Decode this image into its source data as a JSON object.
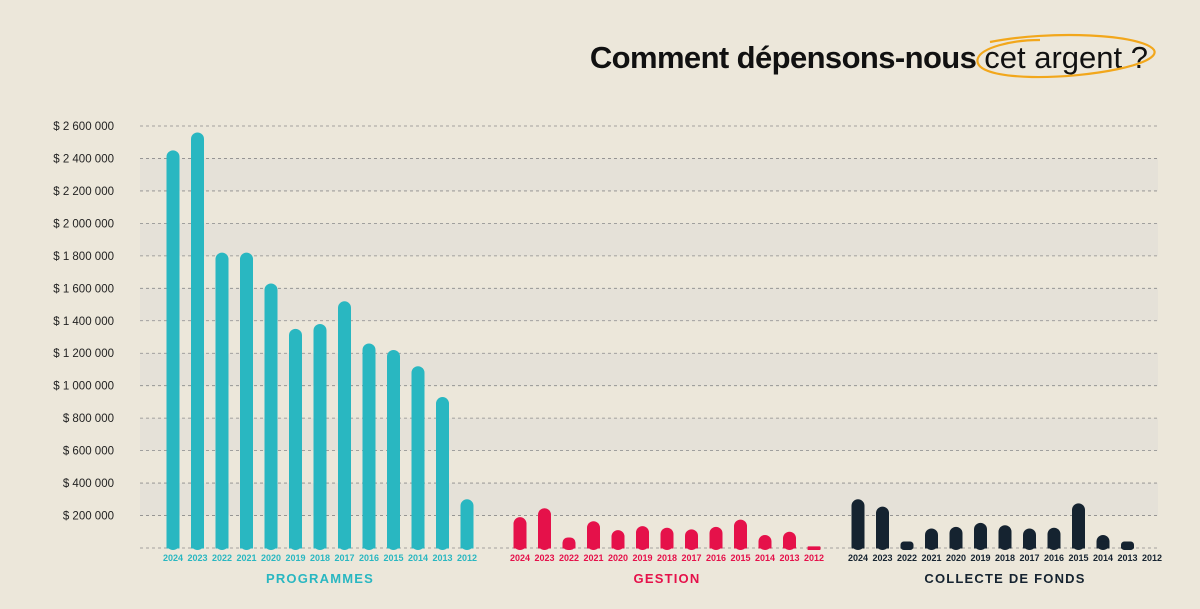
{
  "title": {
    "main": "Comment dépensons-nous",
    "highlight": "cet argent ?"
  },
  "colors": {
    "background": "#ece7da",
    "band": "#e5e1d8",
    "programmes": "#29b7c1",
    "gestion": "#e5114a",
    "collecte": "#152330",
    "highlight_ring": "#f2a71b"
  },
  "chart_data": {
    "type": "bar",
    "grid": true,
    "ylim": [
      0,
      2600000
    ],
    "yticks": [
      200000,
      400000,
      600000,
      800000,
      1000000,
      1200000,
      1400000,
      1600000,
      1800000,
      2000000,
      2200000,
      2400000,
      2600000
    ],
    "ytick_labels": [
      "$ 200 000",
      "$ 400 000",
      "$ 600 000",
      "$ 800 000",
      "$ 1 000 000",
      "$ 1 200 000",
      "$ 1 400 000",
      "$ 1 600 000",
      "$ 1 800 000",
      "$ 2 000 000",
      "$ 2 200 000",
      "$ 2 400 000",
      "$ 2 600 000"
    ],
    "groups": [
      {
        "name": "PROGRAMMES",
        "color": "#29b7c1",
        "categories": [
          "2024",
          "2023",
          "2022",
          "2021",
          "2020",
          "2019",
          "2018",
          "2017",
          "2016",
          "2015",
          "2014",
          "2013",
          "2012"
        ],
        "values": [
          2450000,
          2560000,
          1820000,
          1820000,
          1630000,
          1350000,
          1380000,
          1520000,
          1260000,
          1220000,
          1120000,
          930000,
          300000
        ]
      },
      {
        "name": "GESTION",
        "color": "#e5114a",
        "categories": [
          "2024",
          "2023",
          "2022",
          "2021",
          "2020",
          "2019",
          "2018",
          "2017",
          "2016",
          "2015",
          "2014",
          "2013",
          "2012"
        ],
        "values": [
          190000,
          245000,
          65000,
          165000,
          110000,
          135000,
          125000,
          115000,
          130000,
          175000,
          80000,
          100000,
          10000
        ]
      },
      {
        "name": "COLLECTE DE FONDS",
        "color": "#152330",
        "categories": [
          "2024",
          "2023",
          "2022",
          "2021",
          "2020",
          "2019",
          "2018",
          "2017",
          "2016",
          "2015",
          "2014",
          "2013",
          "2012"
        ],
        "values": [
          300000,
          255000,
          40000,
          120000,
          130000,
          155000,
          140000,
          120000,
          125000,
          275000,
          80000,
          40000,
          0
        ]
      }
    ]
  }
}
